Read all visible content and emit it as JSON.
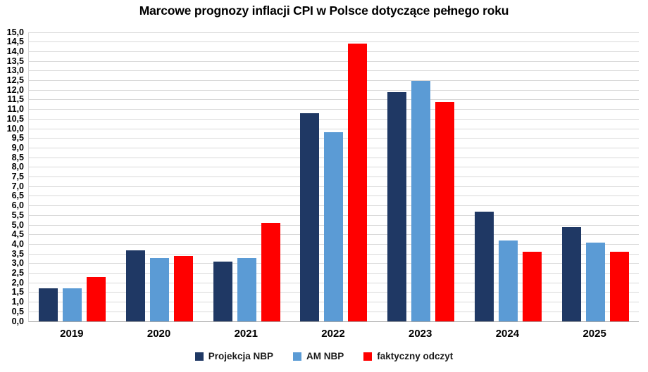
{
  "title": "Marcowe prognozy inflacji CPI w Polsce dotyczące pełnego roku",
  "chart_data": {
    "type": "bar",
    "title": "Marcowe prognozy inflacji CPI w Polsce dotyczące pełnego roku",
    "categories": [
      "2019",
      "2020",
      "2021",
      "2022",
      "2023",
      "2024",
      "2025"
    ],
    "series": [
      {
        "name": "Projekcja NBP",
        "color": "#1f3864",
        "values": [
          1.7,
          3.7,
          3.1,
          10.8,
          11.9,
          5.7,
          4.9
        ]
      },
      {
        "name": "AM NBP",
        "color": "#5b9bd5",
        "values": [
          1.7,
          3.3,
          3.3,
          9.8,
          12.5,
          4.2,
          4.1
        ]
      },
      {
        "name": "faktyczny odczyt",
        "color": "#ff0000",
        "values": [
          2.3,
          3.4,
          5.1,
          14.4,
          11.4,
          3.6,
          3.6
        ]
      }
    ],
    "xlabel": "",
    "ylabel": "",
    "ylim": [
      0,
      15
    ],
    "ytick_step": 0.5,
    "decimal_separator": ",",
    "grid": true,
    "legend_position": "bottom",
    "colors": {
      "gridline": "#d9d9d9",
      "axis_line": "#a6a6a6",
      "text": "#000000"
    }
  }
}
